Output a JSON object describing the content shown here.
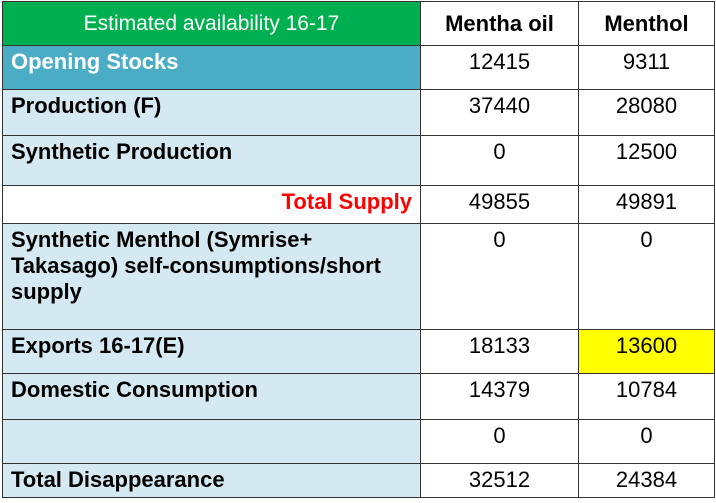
{
  "table": {
    "title": "Estimated availability 16-17",
    "columns": [
      "Mentha oil",
      "Menthol"
    ],
    "rows": [
      {
        "label": "Opening Stocks",
        "mentha_oil": "12415",
        "menthol": "9311"
      },
      {
        "label": "Production (F)",
        "mentha_oil": "37440",
        "menthol": "28080"
      },
      {
        "label": "Synthetic Production",
        "mentha_oil": "0",
        "menthol": "12500"
      },
      {
        "label": "Total Supply",
        "mentha_oil": "49855",
        "menthol": "49891"
      },
      {
        "label": "Synthetic Menthol (Symrise+ Takasago) self-consumptions/short supply",
        "mentha_oil": "0",
        "menthol": "0"
      },
      {
        "label": "Exports 16-17(E)",
        "mentha_oil": "18133",
        "menthol": "13600"
      },
      {
        "label": "Domestic Consumption",
        "mentha_oil": "14379",
        "menthol": "10784"
      },
      {
        "label": "",
        "mentha_oil": "0",
        "menthol": "0"
      },
      {
        "label": "Total Disappearance",
        "mentha_oil": "32512",
        "menthol": "24384"
      }
    ]
  },
  "colors": {
    "header_green": "#00b050",
    "opening_blue": "#4bacc6",
    "row_light_blue": "#d4e9f2",
    "total_supply_red": "#ff0000",
    "highlight_yellow": "#ffff00"
  }
}
